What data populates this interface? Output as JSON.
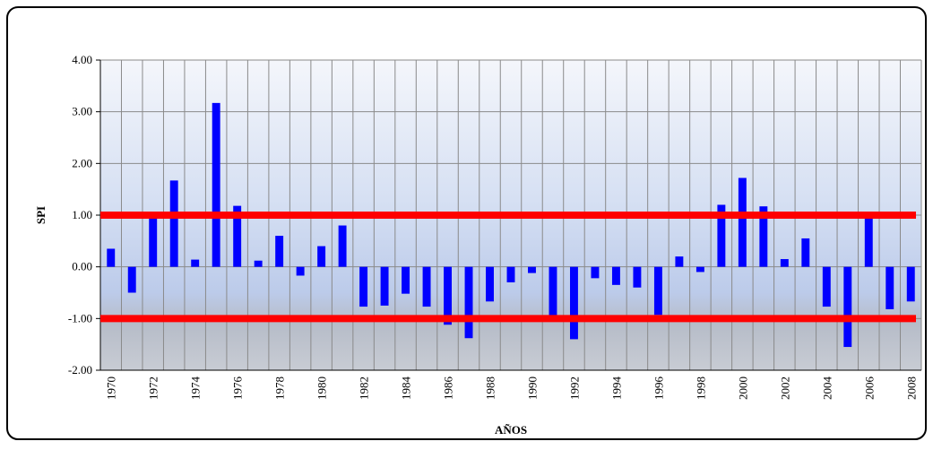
{
  "chart_data": {
    "type": "bar",
    "x_label": "AÑOS",
    "y_label": "SPI",
    "categories": [
      "1970",
      null,
      "1972",
      null,
      "1974",
      null,
      "1976",
      null,
      "1978",
      null,
      "1980",
      null,
      "1982",
      null,
      "1984",
      null,
      "1986",
      null,
      "1988",
      null,
      "1990",
      null,
      "1992",
      null,
      "1994",
      null,
      "1996",
      null,
      "1998",
      null,
      "2000",
      null,
      "2002",
      null,
      "2004",
      null,
      "2006",
      null,
      "2008"
    ],
    "values": [
      0.35,
      -0.5,
      0.95,
      1.67,
      0.14,
      3.17,
      1.18,
      0.12,
      0.6,
      -0.17,
      0.4,
      0.8,
      -0.77,
      -0.75,
      -0.52,
      -0.77,
      -1.12,
      -1.38,
      -0.67,
      -0.3,
      -0.12,
      -1.05,
      -1.4,
      -0.22,
      -0.35,
      -0.4,
      -0.93,
      0.2,
      -0.1,
      1.2,
      1.72,
      1.17,
      0.15,
      0.55,
      -0.77,
      -1.55,
      1.05,
      -0.82,
      -0.67
    ],
    "color": "#0000ff",
    "reference_lines": [
      1,
      -1
    ],
    "reference_color": "#ff0000",
    "ylim": [
      -2,
      4
    ],
    "yticks": [
      {
        "value": -2,
        "label": "-2.00"
      },
      {
        "value": -1,
        "label": "-1.00"
      },
      {
        "value": 0,
        "label": "0.00"
      },
      {
        "value": 1,
        "label": "1.00"
      },
      {
        "value": 2,
        "label": "2.00"
      },
      {
        "value": 3,
        "label": "3.00"
      },
      {
        "value": 4,
        "label": "4.00"
      }
    ],
    "grid": true
  }
}
